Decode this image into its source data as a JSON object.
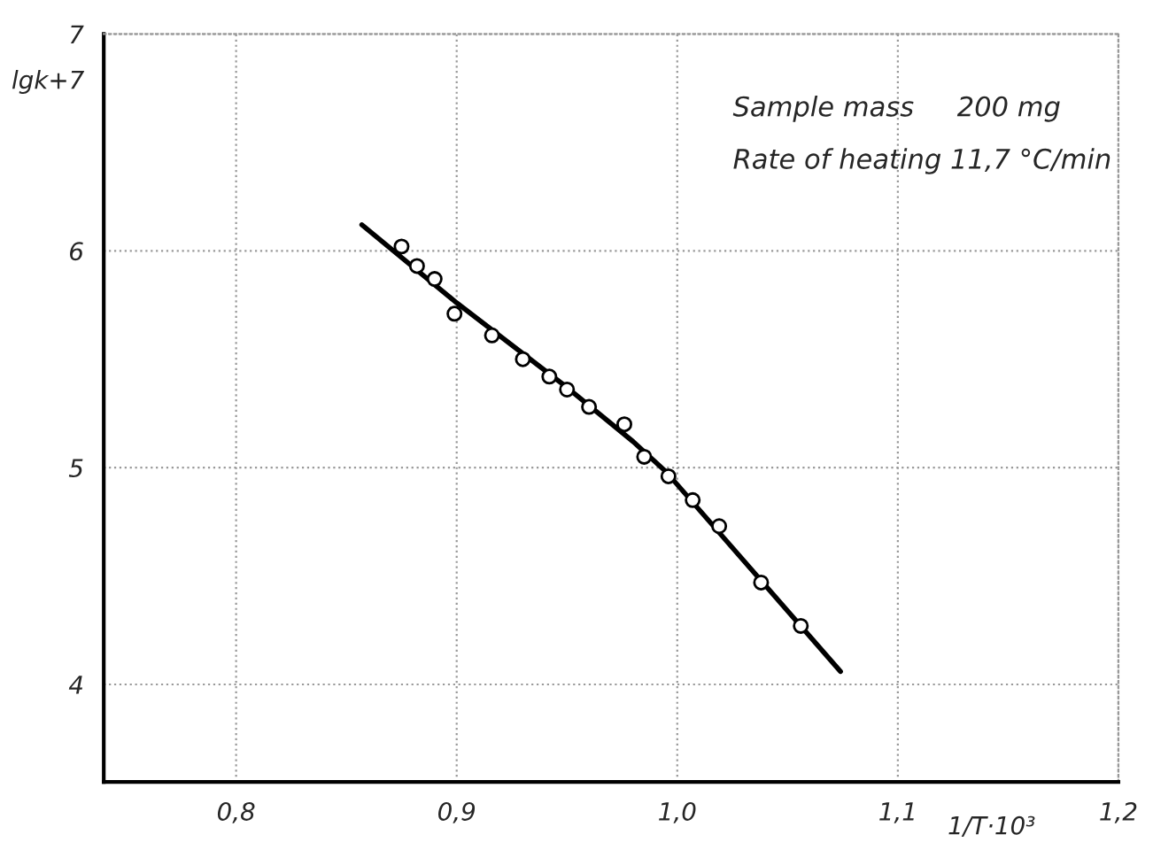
{
  "chart_data": {
    "type": "scatter",
    "xlabel": "1/T·10³",
    "ylabel": "lgk+7",
    "annotations": [
      "Sample mass     200 mg",
      "Rate of heating 11,7 °C/min"
    ],
    "xlim": [
      0.74,
      1.2
    ],
    "ylim": [
      3.55,
      7
    ],
    "xticks": [
      {
        "value": 0.8,
        "label": "0,8"
      },
      {
        "value": 0.9,
        "label": "0,9"
      },
      {
        "value": 1.0,
        "label": "1,0"
      },
      {
        "value": 1.1,
        "label": "1,1"
      },
      {
        "value": 1.2,
        "label": "1,2"
      }
    ],
    "yticks": [
      4,
      5,
      6,
      7
    ],
    "grid": true,
    "series": [
      {
        "marker": "circle",
        "color": "#000000",
        "x": [
          0.875,
          0.882,
          0.89,
          0.899,
          0.916,
          0.93,
          0.942,
          0.95,
          0.96,
          0.976,
          0.985,
          0.996,
          1.007,
          1.019,
          1.038,
          1.056
        ],
        "values": [
          6.02,
          5.93,
          5.87,
          5.71,
          5.61,
          5.5,
          5.42,
          5.36,
          5.28,
          5.2,
          5.05,
          4.96,
          4.85,
          4.73,
          4.47,
          4.27
        ]
      },
      {
        "type": "line",
        "marker": "none",
        "line_style": "solid",
        "color": "#000000",
        "x": [
          0.857,
          0.9,
          0.95,
          0.98,
          0.995,
          1.074
        ],
        "values": [
          6.12,
          5.76,
          5.37,
          5.12,
          4.98,
          4.06
        ]
      }
    ]
  }
}
